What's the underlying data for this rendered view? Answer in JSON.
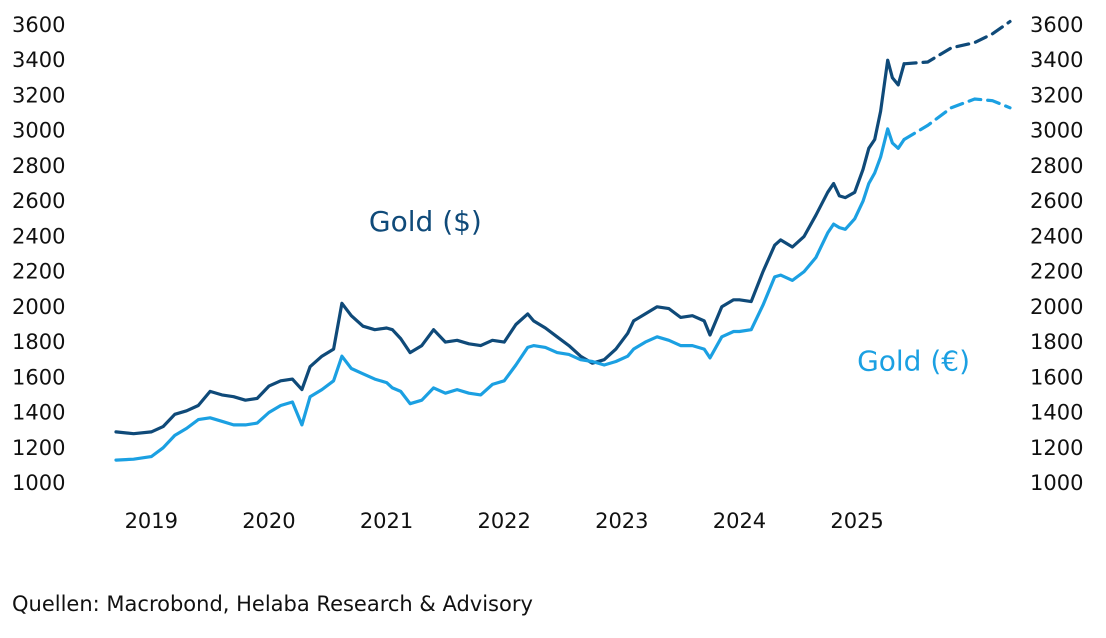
{
  "chart_data": {
    "type": "line",
    "title": "",
    "xlabel": "",
    "ylabel": "",
    "ylim": [
      1000,
      3600
    ],
    "y_ticks": [
      "1000",
      "1200",
      "1400",
      "1600",
      "1800",
      "2000",
      "2200",
      "2400",
      "2600",
      "2800",
      "3000",
      "3200",
      "3400",
      "3600"
    ],
    "y_axis_right": true,
    "x_range": [
      2018.7,
      2026.3
    ],
    "x_ticks": [
      {
        "label": "2019",
        "x": 2019.0
      },
      {
        "label": "2020",
        "x": 2020.0
      },
      {
        "label": "2021",
        "x": 2021.0
      },
      {
        "label": "2022",
        "x": 2022.0
      },
      {
        "label": "2023",
        "x": 2023.0
      },
      {
        "label": "2024",
        "x": 2024.0
      },
      {
        "label": "2025",
        "x": 2025.0
      }
    ],
    "grid": false,
    "series": [
      {
        "name": "Gold ($)",
        "color": "#0f4a79",
        "label_at": {
          "x": 2020.85,
          "y": 2430
        },
        "actual": [
          [
            2018.7,
            1290
          ],
          [
            2018.85,
            1280
          ],
          [
            2019.0,
            1290
          ],
          [
            2019.1,
            1320
          ],
          [
            2019.2,
            1390
          ],
          [
            2019.3,
            1410
          ],
          [
            2019.4,
            1440
          ],
          [
            2019.5,
            1520
          ],
          [
            2019.6,
            1500
          ],
          [
            2019.7,
            1490
          ],
          [
            2019.8,
            1470
          ],
          [
            2019.9,
            1480
          ],
          [
            2020.0,
            1550
          ],
          [
            2020.1,
            1580
          ],
          [
            2020.2,
            1590
          ],
          [
            2020.28,
            1530
          ],
          [
            2020.35,
            1660
          ],
          [
            2020.45,
            1720
          ],
          [
            2020.55,
            1760
          ],
          [
            2020.62,
            2020
          ],
          [
            2020.7,
            1950
          ],
          [
            2020.8,
            1890
          ],
          [
            2020.9,
            1870
          ],
          [
            2021.0,
            1880
          ],
          [
            2021.05,
            1870
          ],
          [
            2021.12,
            1820
          ],
          [
            2021.2,
            1740
          ],
          [
            2021.3,
            1780
          ],
          [
            2021.4,
            1870
          ],
          [
            2021.5,
            1800
          ],
          [
            2021.6,
            1810
          ],
          [
            2021.7,
            1790
          ],
          [
            2021.8,
            1780
          ],
          [
            2021.9,
            1810
          ],
          [
            2022.0,
            1800
          ],
          [
            2022.1,
            1900
          ],
          [
            2022.2,
            1960
          ],
          [
            2022.25,
            1920
          ],
          [
            2022.35,
            1880
          ],
          [
            2022.45,
            1830
          ],
          [
            2022.55,
            1780
          ],
          [
            2022.65,
            1720
          ],
          [
            2022.75,
            1680
          ],
          [
            2022.85,
            1700
          ],
          [
            2022.95,
            1760
          ],
          [
            2023.05,
            1850
          ],
          [
            2023.1,
            1920
          ],
          [
            2023.2,
            1960
          ],
          [
            2023.3,
            2000
          ],
          [
            2023.4,
            1990
          ],
          [
            2023.5,
            1940
          ],
          [
            2023.6,
            1950
          ],
          [
            2023.7,
            1920
          ],
          [
            2023.75,
            1840
          ],
          [
            2023.85,
            2000
          ],
          [
            2023.95,
            2040
          ],
          [
            2024.0,
            2040
          ],
          [
            2024.1,
            2030
          ],
          [
            2024.2,
            2200
          ],
          [
            2024.3,
            2350
          ],
          [
            2024.35,
            2380
          ],
          [
            2024.45,
            2340
          ],
          [
            2024.55,
            2400
          ],
          [
            2024.65,
            2520
          ],
          [
            2024.75,
            2650
          ],
          [
            2024.8,
            2700
          ],
          [
            2024.85,
            2630
          ],
          [
            2024.9,
            2620
          ],
          [
            2024.98,
            2650
          ],
          [
            2025.05,
            2780
          ],
          [
            2025.1,
            2900
          ],
          [
            2025.15,
            2950
          ],
          [
            2025.2,
            3110
          ],
          [
            2025.26,
            3400
          ],
          [
            2025.3,
            3300
          ],
          [
            2025.35,
            3260
          ],
          [
            2025.4,
            3380
          ]
        ],
        "forecast": [
          [
            2025.4,
            3380
          ],
          [
            2025.6,
            3390
          ],
          [
            2025.8,
            3470
          ],
          [
            2026.0,
            3500
          ],
          [
            2026.15,
            3550
          ],
          [
            2026.3,
            3620
          ]
        ]
      },
      {
        "name": "Gold (€)",
        "color": "#1ba0e2",
        "label_at": {
          "x": 2025.0,
          "y": 1640
        },
        "actual": [
          [
            2018.7,
            1130
          ],
          [
            2018.85,
            1135
          ],
          [
            2019.0,
            1150
          ],
          [
            2019.1,
            1200
          ],
          [
            2019.2,
            1270
          ],
          [
            2019.3,
            1310
          ],
          [
            2019.4,
            1360
          ],
          [
            2019.5,
            1370
          ],
          [
            2019.6,
            1350
          ],
          [
            2019.7,
            1330
          ],
          [
            2019.8,
            1330
          ],
          [
            2019.9,
            1340
          ],
          [
            2020.0,
            1400
          ],
          [
            2020.1,
            1440
          ],
          [
            2020.2,
            1460
          ],
          [
            2020.28,
            1330
          ],
          [
            2020.35,
            1490
          ],
          [
            2020.45,
            1530
          ],
          [
            2020.55,
            1580
          ],
          [
            2020.62,
            1720
          ],
          [
            2020.7,
            1650
          ],
          [
            2020.8,
            1620
          ],
          [
            2020.9,
            1590
          ],
          [
            2021.0,
            1570
          ],
          [
            2021.05,
            1540
          ],
          [
            2021.12,
            1520
          ],
          [
            2021.2,
            1450
          ],
          [
            2021.3,
            1470
          ],
          [
            2021.4,
            1540
          ],
          [
            2021.5,
            1510
          ],
          [
            2021.6,
            1530
          ],
          [
            2021.7,
            1510
          ],
          [
            2021.8,
            1500
          ],
          [
            2021.9,
            1560
          ],
          [
            2022.0,
            1580
          ],
          [
            2022.1,
            1670
          ],
          [
            2022.2,
            1770
          ],
          [
            2022.25,
            1780
          ],
          [
            2022.35,
            1770
          ],
          [
            2022.45,
            1740
          ],
          [
            2022.55,
            1730
          ],
          [
            2022.65,
            1700
          ],
          [
            2022.75,
            1690
          ],
          [
            2022.85,
            1670
          ],
          [
            2022.95,
            1690
          ],
          [
            2023.05,
            1720
          ],
          [
            2023.1,
            1760
          ],
          [
            2023.2,
            1800
          ],
          [
            2023.3,
            1830
          ],
          [
            2023.4,
            1810
          ],
          [
            2023.5,
            1780
          ],
          [
            2023.6,
            1780
          ],
          [
            2023.7,
            1760
          ],
          [
            2023.75,
            1710
          ],
          [
            2023.85,
            1830
          ],
          [
            2023.95,
            1860
          ],
          [
            2024.0,
            1860
          ],
          [
            2024.1,
            1870
          ],
          [
            2024.2,
            2010
          ],
          [
            2024.3,
            2170
          ],
          [
            2024.35,
            2180
          ],
          [
            2024.45,
            2150
          ],
          [
            2024.55,
            2200
          ],
          [
            2024.65,
            2280
          ],
          [
            2024.75,
            2420
          ],
          [
            2024.8,
            2470
          ],
          [
            2024.85,
            2450
          ],
          [
            2024.9,
            2440
          ],
          [
            2024.98,
            2500
          ],
          [
            2025.05,
            2600
          ],
          [
            2025.1,
            2700
          ],
          [
            2025.15,
            2760
          ],
          [
            2025.2,
            2850
          ],
          [
            2025.26,
            3010
          ],
          [
            2025.3,
            2930
          ],
          [
            2025.35,
            2900
          ],
          [
            2025.4,
            2950
          ]
        ],
        "forecast": [
          [
            2025.4,
            2950
          ],
          [
            2025.6,
            3030
          ],
          [
            2025.8,
            3130
          ],
          [
            2026.0,
            3180
          ],
          [
            2026.15,
            3170
          ],
          [
            2026.3,
            3130
          ]
        ]
      }
    ]
  },
  "footer": {
    "source": "Quellen: Macrobond, Helaba Research & Advisory"
  }
}
